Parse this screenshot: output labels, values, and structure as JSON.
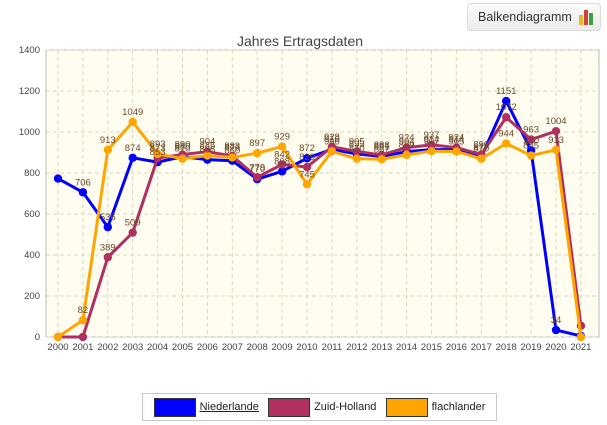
{
  "toggle": {
    "label": "Balkendiagramm",
    "icon": "bar-chart-icon"
  },
  "colors": {
    "Niederlande": "#0000ff",
    "Zuid-Holland": "#b03060",
    "flachlander": "#ffa500",
    "plot_bg": "#fffdef",
    "grid": "#d9d9c0"
  },
  "chart_data": {
    "type": "line",
    "title": "Jahres Ertragsdaten",
    "x": [
      "2000",
      "2001",
      "2002",
      "2003",
      "2004",
      "2005",
      "2006",
      "2007",
      "2008",
      "2009",
      "2010",
      "2011",
      "2012",
      "2013",
      "2014",
      "2015",
      "2016",
      "2017",
      "2018",
      "2019",
      "2020",
      "2021"
    ],
    "ylim": [
      0,
      1400
    ],
    "yticks": [
      0,
      200,
      400,
      600,
      800,
      1000,
      1200,
      1400
    ],
    "grid": true,
    "legend_position": "bottom",
    "series": [
      {
        "name": "Niederlande",
        "values": [
          773,
          706,
          536,
          874,
          853,
          880,
          865,
          860,
          770,
          808,
          872,
          916,
          893,
          881,
          904,
          914,
          914,
          877,
          1151,
          910,
          34,
          5
        ],
        "labels": [
          "",
          "706",
          "536",
          "874",
          "853",
          "880",
          "865",
          "860",
          "770",
          "808",
          "872",
          "916",
          "893",
          "881",
          "904",
          "914",
          "914",
          "877",
          "1151",
          "910",
          "34",
          ""
        ]
      },
      {
        "name": "Zuid-Holland",
        "values": [
          0,
          0,
          389,
          509,
          873,
          890,
          904,
          883,
          779,
          842,
          829,
          928,
          905,
          888,
          924,
          937,
          924,
          890,
          1072,
          963,
          1004,
          55
        ],
        "labels": [
          "",
          "",
          "389",
          "509",
          "873",
          "890",
          "904",
          "883",
          "779",
          "842",
          "829",
          "928",
          "905",
          "888",
          "924",
          "937",
          "924",
          "890",
          "1072",
          "963",
          "1004",
          ""
        ]
      },
      {
        "name": "flachlander",
        "values": [
          0,
          82,
          913,
          1049,
          893,
          870,
          885,
          876,
          897,
          929,
          745,
          906,
          870,
          867,
          889,
          907,
          905,
          870,
          944,
          885,
          913,
          0
        ],
        "labels": [
          "",
          "82",
          "913",
          "1049",
          "893",
          "870",
          "885",
          "876",
          "897",
          "929",
          "745",
          "906",
          "870",
          "867",
          "889",
          "907",
          "905",
          "870",
          "944",
          "885",
          "913",
          ""
        ]
      }
    ]
  }
}
